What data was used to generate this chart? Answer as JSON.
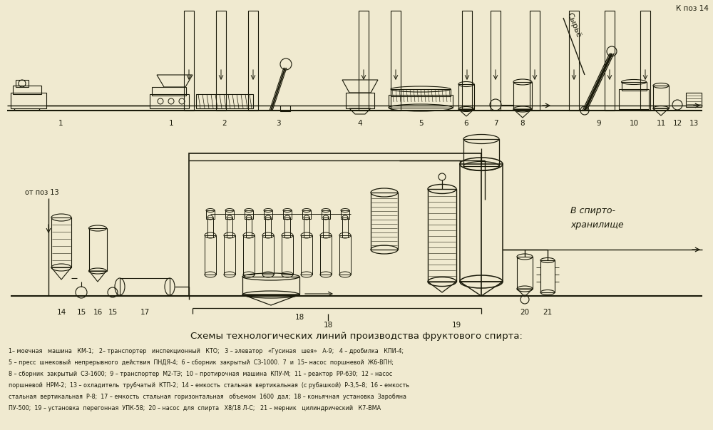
{
  "bg_color": "#f0ead0",
  "line_color": "#1a1a0a",
  "title": "Схемы технологических линий производства фруктового спирта:",
  "caption_lines": [
    "1– моечная   машина   КМ-1;   2– транспортер   инспекционный   КТО;   3 – элеватор   «Гусиная   шея»   А-9;   4 – дробилка   КПИ-4;",
    "5 – пресс  шнековый  непрерывного  действия  ПНДЯ-4;  6 – сборник  закрытый  СЗ-1000.  7  и  15– насос  поршневой  Жб-ВПН;",
    "8 – сборник  закрытый  СЗ-1600;  9 – транспортер  М2-ТЭ;  10 – протирочная  машина  КПУ-М;  11 – реактор  РР-630;  12 – насос",
    "поршневой  НРМ-2;  13 – охладитель  трубчатый  КТП-2;  14 – емкость  стальная  вертикальная  (с рубашкой)  Р-3,5–8;  16 – емкость",
    "стальная  вертикальная  Р-8;  17 – емкость  стальная  горизонтальная   объемом  1600  дал;  18 – коньячная  установка  Заробяна",
    "ПУ-500;  19 – установка  перегонная  УПК-58;  20 – насос  для  спирта   Х8/18 Л-С;   21 – мерник   цилиндрический   К7-ВМА"
  ]
}
